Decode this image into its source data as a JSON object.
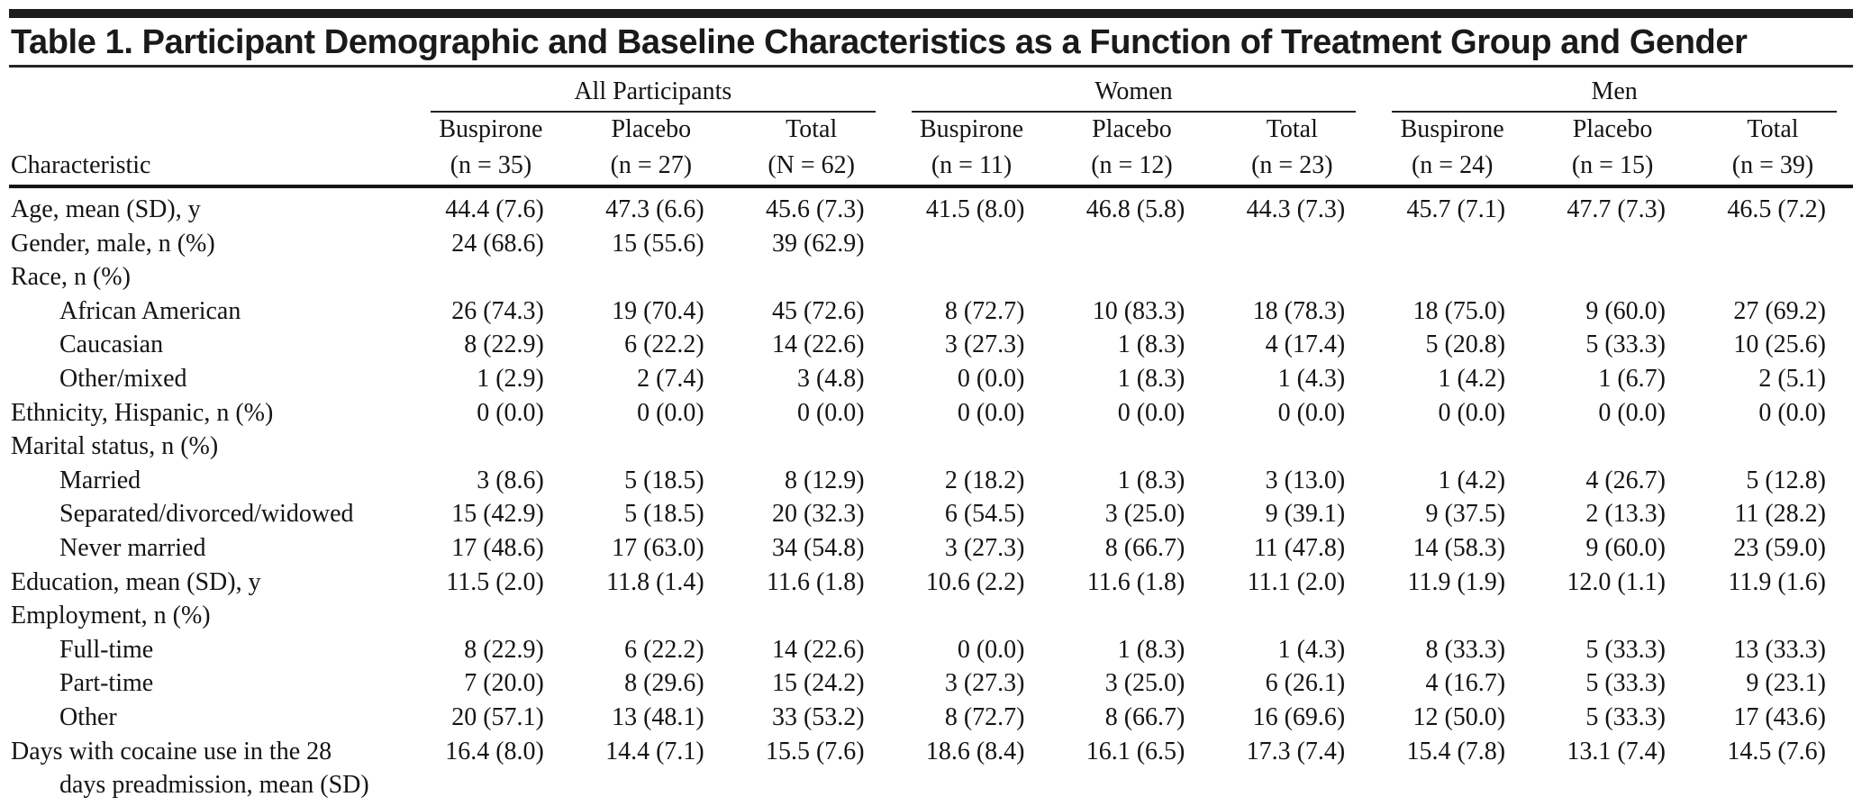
{
  "title": "Table 1. Participant Demographic and Baseline Characteristics as a Function of Treatment Group and Gender",
  "table": {
    "char_header": "Characteristic",
    "groups": [
      {
        "label": "All Participants",
        "columns": [
          {
            "name": "Buspirone",
            "n": "(n = 35)"
          },
          {
            "name": "Placebo",
            "n": "(n = 27)"
          },
          {
            "name": "Total",
            "n": "(N = 62)"
          }
        ]
      },
      {
        "label": "Women",
        "columns": [
          {
            "name": "Buspirone",
            "n": "(n = 11)"
          },
          {
            "name": "Placebo",
            "n": "(n = 12)"
          },
          {
            "name": "Total",
            "n": "(n = 23)"
          }
        ]
      },
      {
        "label": "Men",
        "columns": [
          {
            "name": "Buspirone",
            "n": "(n = 24)"
          },
          {
            "name": "Placebo",
            "n": "(n = 15)"
          },
          {
            "name": "Total",
            "n": "(n = 39)"
          }
        ]
      }
    ],
    "rows": [
      {
        "label": "Age, mean (SD), y",
        "indent": 0,
        "values": [
          "44.4 (7.6)",
          "47.3 (6.6)",
          "45.6 (7.3)",
          "41.5 (8.0)",
          "46.8 (5.8)",
          "44.3 (7.3)",
          "45.7 (7.1)",
          "47.7 (7.3)",
          "46.5 (7.2)"
        ]
      },
      {
        "label": "Gender, male, n (%)",
        "indent": 0,
        "values": [
          "24 (68.6)",
          "15 (55.6)",
          "39 (62.9)",
          "",
          "",
          "",
          "",
          "",
          ""
        ]
      },
      {
        "label": "Race, n (%)",
        "indent": 0,
        "values": [
          "",
          "",
          "",
          "",
          "",
          "",
          "",
          "",
          ""
        ]
      },
      {
        "label": "African American",
        "indent": 1,
        "values": [
          "26 (74.3)",
          "19 (70.4)",
          "45 (72.6)",
          "8 (72.7)",
          "10 (83.3)",
          "18 (78.3)",
          "18 (75.0)",
          "9 (60.0)",
          "27 (69.2)"
        ]
      },
      {
        "label": "Caucasian",
        "indent": 1,
        "values": [
          "8 (22.9)",
          "6 (22.2)",
          "14 (22.6)",
          "3 (27.3)",
          "1 (8.3)",
          "4 (17.4)",
          "5 (20.8)",
          "5 (33.3)",
          "10 (25.6)"
        ]
      },
      {
        "label": "Other/mixed",
        "indent": 1,
        "values": [
          "1 (2.9)",
          "2 (7.4)",
          "3 (4.8)",
          "0 (0.0)",
          "1 (8.3)",
          "1 (4.3)",
          "1 (4.2)",
          "1 (6.7)",
          "2 (5.1)"
        ]
      },
      {
        "label": "Ethnicity, Hispanic, n (%)",
        "indent": 0,
        "values": [
          "0 (0.0)",
          "0 (0.0)",
          "0 (0.0)",
          "0 (0.0)",
          "0 (0.0)",
          "0 (0.0)",
          "0 (0.0)",
          "0 (0.0)",
          "0 (0.0)"
        ]
      },
      {
        "label": "Marital status, n (%)",
        "indent": 0,
        "values": [
          "",
          "",
          "",
          "",
          "",
          "",
          "",
          "",
          ""
        ]
      },
      {
        "label": "Married",
        "indent": 1,
        "values": [
          "3 (8.6)",
          "5 (18.5)",
          "8 (12.9)",
          "2 (18.2)",
          "1 (8.3)",
          "3 (13.0)",
          "1 (4.2)",
          "4 (26.7)",
          "5 (12.8)"
        ]
      },
      {
        "label": "Separated/divorced/widowed",
        "indent": 1,
        "values": [
          "15 (42.9)",
          "5 (18.5)",
          "20 (32.3)",
          "6 (54.5)",
          "3 (25.0)",
          "9 (39.1)",
          "9 (37.5)",
          "2 (13.3)",
          "11 (28.2)"
        ]
      },
      {
        "label": "Never married",
        "indent": 1,
        "values": [
          "17 (48.6)",
          "17 (63.0)",
          "34 (54.8)",
          "3 (27.3)",
          "8 (66.7)",
          "11 (47.8)",
          "14 (58.3)",
          "9 (60.0)",
          "23 (59.0)"
        ]
      },
      {
        "label": "Education, mean (SD), y",
        "indent": 0,
        "values": [
          "11.5 (2.0)",
          "11.8 (1.4)",
          "11.6 (1.8)",
          "10.6 (2.2)",
          "11.6 (1.8)",
          "11.1 (2.0)",
          "11.9 (1.9)",
          "12.0 (1.1)",
          "11.9 (1.6)"
        ]
      },
      {
        "label": "Employment, n (%)",
        "indent": 0,
        "values": [
          "",
          "",
          "",
          "",
          "",
          "",
          "",
          "",
          ""
        ]
      },
      {
        "label": "Full-time",
        "indent": 1,
        "values": [
          "8 (22.9)",
          "6 (22.2)",
          "14 (22.6)",
          "0 (0.0)",
          "1 (8.3)",
          "1 (4.3)",
          "8 (33.3)",
          "5 (33.3)",
          "13 (33.3)"
        ]
      },
      {
        "label": "Part-time",
        "indent": 1,
        "values": [
          "7 (20.0)",
          "8 (29.6)",
          "15 (24.2)",
          "3 (27.3)",
          "3 (25.0)",
          "6 (26.1)",
          "4 (16.7)",
          "5 (33.3)",
          "9 (23.1)"
        ]
      },
      {
        "label": "Other",
        "indent": 1,
        "values": [
          "20 (57.1)",
          "13 (48.1)",
          "33 (53.2)",
          "8 (72.7)",
          "8 (66.7)",
          "16 (69.6)",
          "12 (50.0)",
          "5 (33.3)",
          "17 (43.6)"
        ]
      },
      {
        "label": "Days with cocaine use in the 28 days preadmission, mean (SD)",
        "indent": 0,
        "hang": true,
        "values": [
          "16.4 (8.0)",
          "14.4 (7.1)",
          "15.5 (7.6)",
          "18.6 (8.4)",
          "16.1 (6.5)",
          "17.3 (7.4)",
          "15.4 (7.8)",
          "13.1 (7.4)",
          "14.5 (7.6)"
        ]
      }
    ]
  }
}
